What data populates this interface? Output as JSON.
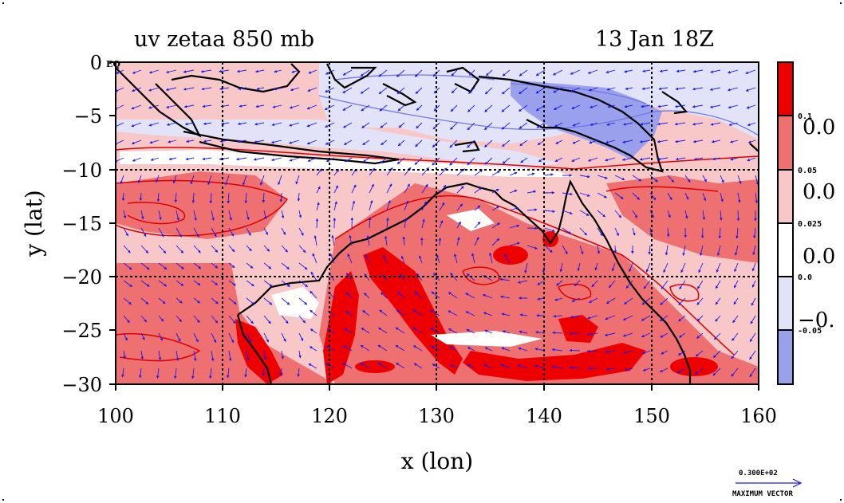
{
  "header": {
    "title_left": "uv zetaa 850 mb",
    "title_right": "13 Jan 18Z"
  },
  "axes": {
    "xlabel": "x (lon)",
    "ylabel": "y (lat)",
    "x_ticks": [
      "100",
      "110",
      "120",
      "130",
      "140",
      "150",
      "160"
    ],
    "y_ticks": [
      "0",
      "−5",
      "−10",
      "−15",
      "−20",
      "−25",
      "−30"
    ],
    "eq_label": "EQ"
  },
  "colorbar": {
    "small_labels": [
      "0.1",
      "0.05",
      "0.025",
      "0.0",
      "-0.05"
    ],
    "big_labels": [
      "0.0",
      "0.0",
      "0.0",
      "−0."
    ],
    "colors": [
      "#ee0000",
      "#ee7070",
      "#f8c8c8",
      "#ffffff",
      "#e2e2f8",
      "#9aa0ec"
    ]
  },
  "vector_key": {
    "magnitude": "0.300E+02",
    "label": "MAXIMUM VECTOR"
  },
  "chart_data": {
    "type": "heatmap",
    "title": "uv zetaa 850 mb",
    "subtitle": "13 Jan 18Z",
    "xlabel": "x (lon)",
    "ylabel": "y (lat)",
    "xlim": [
      100,
      160
    ],
    "ylim": [
      -30,
      0
    ],
    "x_ticks": [
      100,
      110,
      120,
      130,
      140,
      150,
      160
    ],
    "y_ticks": [
      0,
      -5,
      -10,
      -15,
      -20,
      -25,
      -30
    ],
    "grid": true,
    "contour_levels": [
      -0.05,
      0.0,
      0.025,
      0.05,
      0.1
    ],
    "fill_colors": {
      "above_0.1": "#ee0000",
      "0.05_to_0.1": "#ee7070",
      "0.025_to_0.05": "#f8c8c8",
      "0.0_to_0.025": "#ffffff",
      "-0.05_to_0.0": "#e2e2f8",
      "below_-0.05": "#9aa0ec"
    },
    "overlay": "wind vectors (u, v)",
    "max_vector": 30.0
  }
}
